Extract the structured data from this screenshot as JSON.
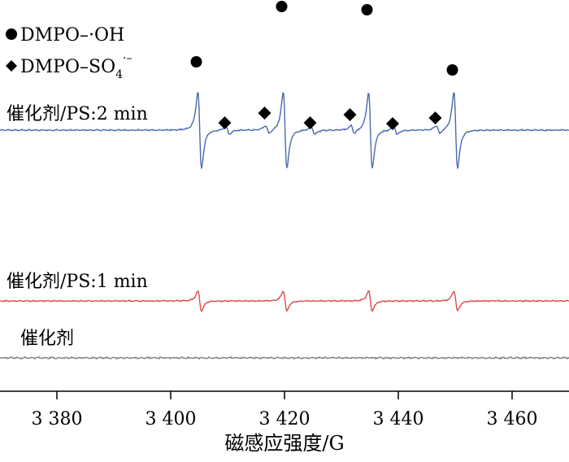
{
  "chart_data": {
    "type": "line",
    "xlabel": "磁感应强度/G",
    "ticks": [
      3380,
      3400,
      3420,
      3440,
      3460
    ],
    "tick_labels": [
      "3 380",
      "3 400",
      "3 420",
      "3 440",
      "3 460"
    ],
    "xlim": [
      3370,
      3470
    ],
    "grid": false,
    "series": [
      {
        "name": "催化剂/PS:2 min",
        "color": "#4a6aae",
        "dmpo_oh_peaks": [
          3404.5,
          3419.5,
          3434.5,
          3449.5
        ],
        "dmpo_so4_peaks": [
          3409.5,
          3416.5,
          3424.5,
          3431.5,
          3439.0,
          3446.5
        ]
      },
      {
        "name": "催化剂/PS:1 min",
        "color": "#d94b4b",
        "dmpo_oh_peaks": [
          3404.5,
          3419.5,
          3434.5,
          3449.5
        ]
      },
      {
        "name": "催化剂",
        "color": "#808080"
      }
    ],
    "legend": [
      {
        "marker": "circle",
        "label_main": "DMPO–·OH"
      },
      {
        "marker": "diamond",
        "label_main": "DMPO–SO",
        "label_sub": "4",
        "label_sup": "·–"
      }
    ]
  }
}
